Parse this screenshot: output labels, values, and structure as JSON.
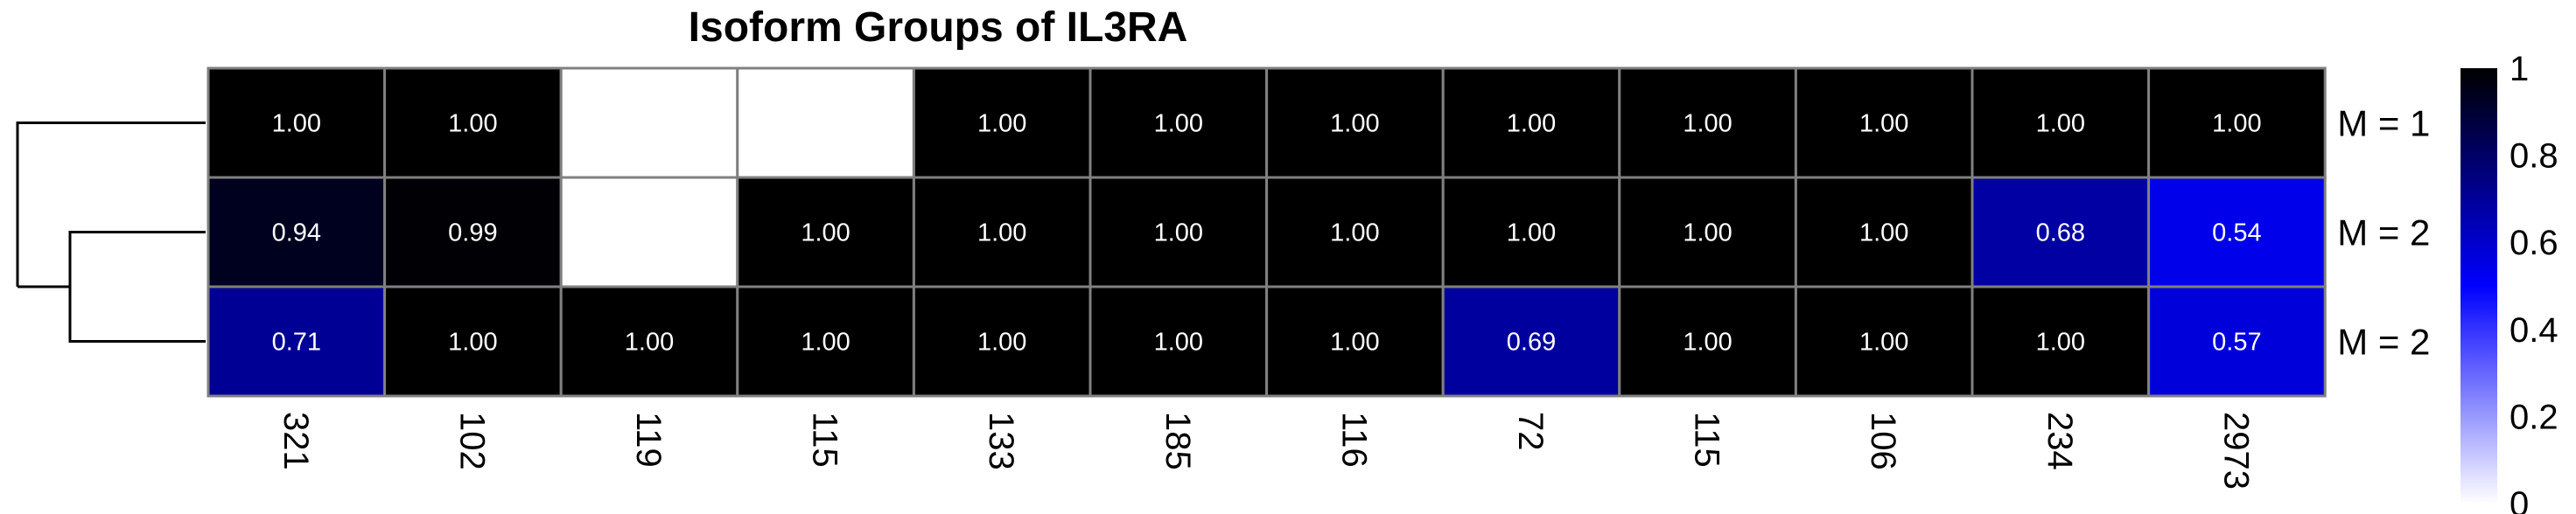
{
  "chart_data": {
    "type": "heatmap",
    "title": "Isoform Groups of IL3RA",
    "columns": [
      "321",
      "102",
      "119",
      "115",
      "133",
      "185",
      "116",
      "72",
      "115",
      "106",
      "234",
      "2973"
    ],
    "rows": [
      "M = 1",
      "M = 2",
      "M = 2"
    ],
    "values": [
      [
        1.0,
        1.0,
        null,
        null,
        1.0,
        1.0,
        1.0,
        1.0,
        1.0,
        1.0,
        1.0,
        1.0
      ],
      [
        0.94,
        0.99,
        null,
        1.0,
        1.0,
        1.0,
        1.0,
        1.0,
        1.0,
        1.0,
        0.68,
        0.54
      ],
      [
        0.71,
        1.0,
        1.0,
        1.0,
        1.0,
        1.0,
        1.0,
        0.69,
        1.0,
        1.0,
        1.0,
        0.57
      ]
    ],
    "cell_labels": [
      [
        "1.00",
        "1.00",
        "",
        "",
        "1.00",
        "1.00",
        "1.00",
        "1.00",
        "1.00",
        "1.00",
        "1.00",
        "1.00"
      ],
      [
        "0.94",
        "0.99",
        "",
        "1.00",
        "1.00",
        "1.00",
        "1.00",
        "1.00",
        "1.00",
        "1.00",
        "0.68",
        "0.54"
      ],
      [
        "0.71",
        "1.00",
        "1.00",
        "1.00",
        "1.00",
        "1.00",
        "1.00",
        "0.69",
        "1.00",
        "1.00",
        "1.00",
        "0.57"
      ]
    ],
    "colorbar": {
      "min": 0,
      "max": 1,
      "ticks": [
        "0",
        "0.2",
        "0.4",
        "0.6",
        "0.8",
        "1"
      ],
      "colors": [
        "#ffffff",
        "#0000ff",
        "#000000"
      ]
    },
    "dendrogram": "rows",
    "missing_color": "#ffffff",
    "grid_color": "#808080"
  }
}
